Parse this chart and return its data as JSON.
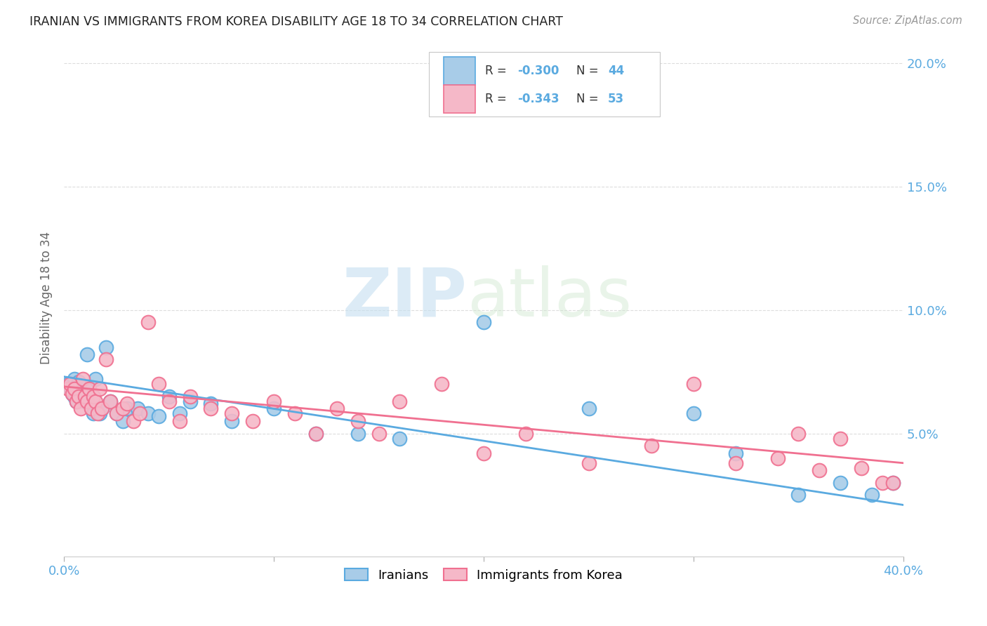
{
  "title": "IRANIAN VS IMMIGRANTS FROM KOREA DISABILITY AGE 18 TO 34 CORRELATION CHART",
  "source": "Source: ZipAtlas.com",
  "ylabel": "Disability Age 18 to 34",
  "xlim": [
    0.0,
    0.4
  ],
  "ylim": [
    0.0,
    0.21
  ],
  "yticks": [
    0.05,
    0.1,
    0.15,
    0.2
  ],
  "right_ytick_labels": [
    "5.0%",
    "10.0%",
    "15.0%",
    "20.0%"
  ],
  "iranian_color": "#a8cce8",
  "korean_color": "#f5b8c8",
  "iranian_edge_color": "#5aaae0",
  "korean_edge_color": "#f07090",
  "iranian_line_color": "#5aaae0",
  "korean_line_color": "#f07090",
  "background_color": "#ffffff",
  "grid_color": "#dddddd",
  "title_color": "#222222",
  "axis_label_color": "#5aaae0",
  "iranian_x": [
    0.002,
    0.003,
    0.004,
    0.005,
    0.005,
    0.006,
    0.006,
    0.007,
    0.008,
    0.009,
    0.01,
    0.011,
    0.012,
    0.013,
    0.014,
    0.015,
    0.016,
    0.017,
    0.018,
    0.02,
    0.022,
    0.025,
    0.028,
    0.03,
    0.035,
    0.04,
    0.045,
    0.05,
    0.055,
    0.06,
    0.07,
    0.08,
    0.1,
    0.12,
    0.14,
    0.16,
    0.2,
    0.25,
    0.3,
    0.32,
    0.35,
    0.37,
    0.385,
    0.395
  ],
  "iranian_y": [
    0.07,
    0.068,
    0.066,
    0.072,
    0.065,
    0.069,
    0.063,
    0.071,
    0.067,
    0.065,
    0.063,
    0.082,
    0.068,
    0.06,
    0.058,
    0.072,
    0.06,
    0.058,
    0.06,
    0.085,
    0.063,
    0.058,
    0.055,
    0.06,
    0.06,
    0.058,
    0.057,
    0.065,
    0.058,
    0.063,
    0.062,
    0.055,
    0.06,
    0.05,
    0.05,
    0.048,
    0.095,
    0.06,
    0.058,
    0.042,
    0.025,
    0.03,
    0.025,
    0.03
  ],
  "korean_x": [
    0.002,
    0.003,
    0.004,
    0.005,
    0.006,
    0.007,
    0.008,
    0.009,
    0.01,
    0.011,
    0.012,
    0.013,
    0.014,
    0.015,
    0.016,
    0.017,
    0.018,
    0.02,
    0.022,
    0.025,
    0.028,
    0.03,
    0.033,
    0.036,
    0.04,
    0.045,
    0.05,
    0.055,
    0.06,
    0.07,
    0.08,
    0.09,
    0.1,
    0.11,
    0.12,
    0.13,
    0.14,
    0.15,
    0.16,
    0.18,
    0.2,
    0.22,
    0.25,
    0.28,
    0.3,
    0.32,
    0.34,
    0.35,
    0.36,
    0.37,
    0.38,
    0.39,
    0.395
  ],
  "korean_y": [
    0.068,
    0.07,
    0.066,
    0.068,
    0.063,
    0.065,
    0.06,
    0.072,
    0.065,
    0.063,
    0.068,
    0.06,
    0.065,
    0.063,
    0.058,
    0.068,
    0.06,
    0.08,
    0.063,
    0.058,
    0.06,
    0.062,
    0.055,
    0.058,
    0.095,
    0.07,
    0.063,
    0.055,
    0.065,
    0.06,
    0.058,
    0.055,
    0.063,
    0.058,
    0.05,
    0.06,
    0.055,
    0.05,
    0.063,
    0.07,
    0.042,
    0.05,
    0.038,
    0.045,
    0.07,
    0.038,
    0.04,
    0.05,
    0.035,
    0.048,
    0.036,
    0.03,
    0.03
  ],
  "iranian_trend_start": 0.073,
  "iranian_trend_end": 0.021,
  "korean_trend_start": 0.069,
  "korean_trend_end": 0.038
}
